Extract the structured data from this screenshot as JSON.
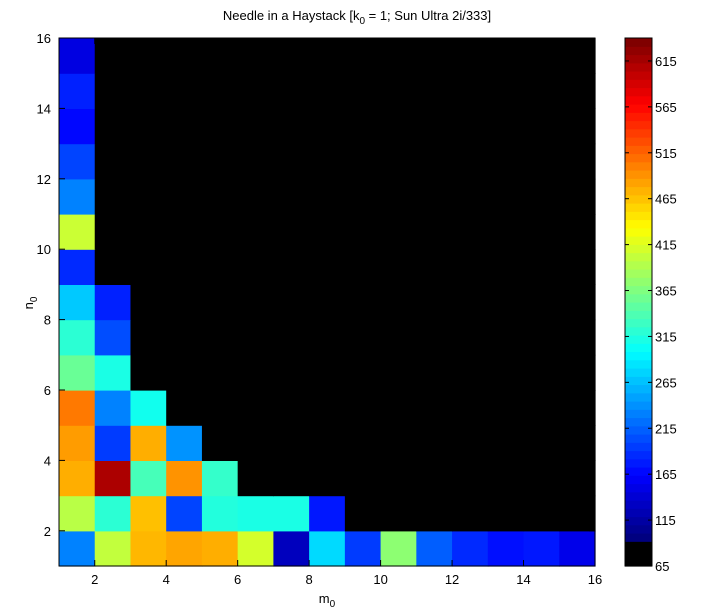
{
  "chart_data": {
    "type": "heatmap",
    "title": {
      "prefix": "Needle in a Haystack [k",
      "sub": "0",
      "suffix": " = 1; Sun Ultra 2i/333]"
    },
    "xlabel": {
      "base": "m",
      "sub": "0"
    },
    "ylabel": {
      "base": "n",
      "sub": "0"
    },
    "x_range": [
      1,
      16
    ],
    "y_range": [
      1,
      16
    ],
    "x_ticks": [
      "2",
      "4",
      "6",
      "8",
      "10",
      "12",
      "14",
      "16"
    ],
    "y_ticks": [
      "2",
      "4",
      "6",
      "8",
      "10",
      "12",
      "14",
      "16"
    ],
    "colorbar": {
      "min": 65,
      "max": 640,
      "ticks": [
        "65",
        "115",
        "165",
        "215",
        "265",
        "315",
        "365",
        "415",
        "465",
        "515",
        "565",
        "615"
      ],
      "colormap": "jet",
      "floor_color": "#000000"
    },
    "cells_description": "grid indexed [n0][m0], value 65 = black (no data)",
    "grid": [
      {
        "n": 1,
        "values": [
          210,
          390,
          465,
          475,
          470,
          400,
          100,
          260,
          170,
          360,
          190,
          160,
          145,
          150,
          125
        ]
      },
      {
        "n": 2,
        "values": [
          385,
          305,
          460,
          175,
          300,
          295,
          295,
          150,
          65,
          65,
          65,
          65,
          65,
          65,
          65
        ]
      },
      {
        "n": 3,
        "values": [
          470,
          615,
          320,
          485,
          310,
          65,
          65,
          65,
          65,
          65,
          65,
          65,
          65,
          65,
          65
        ]
      },
      {
        "n": 4,
        "values": [
          480,
          170,
          470,
          220,
          65,
          65,
          65,
          65,
          65,
          65,
          65,
          65,
          65,
          65,
          65
        ]
      },
      {
        "n": 5,
        "values": [
          500,
          210,
          290,
          65,
          65,
          65,
          65,
          65,
          65,
          65,
          65,
          65,
          65,
          65,
          65
        ]
      },
      {
        "n": 6,
        "values": [
          340,
          295,
          65,
          65,
          65,
          65,
          65,
          65,
          65,
          65,
          65,
          65,
          65,
          65,
          65
        ]
      },
      {
        "n": 7,
        "values": [
          305,
          180,
          65,
          65,
          65,
          65,
          65,
          65,
          65,
          65,
          65,
          65,
          65,
          65,
          65
        ]
      },
      {
        "n": 8,
        "values": [
          250,
          155,
          65,
          65,
          65,
          65,
          65,
          65,
          65,
          65,
          65,
          65,
          65,
          65,
          65
        ]
      },
      {
        "n": 9,
        "values": [
          160,
          65,
          65,
          65,
          65,
          65,
          65,
          65,
          65,
          65,
          65,
          65,
          65,
          65,
          65
        ]
      },
      {
        "n": 10,
        "values": [
          395,
          65,
          65,
          65,
          65,
          65,
          65,
          65,
          65,
          65,
          65,
          65,
          65,
          65,
          65
        ]
      },
      {
        "n": 11,
        "values": [
          210,
          65,
          65,
          65,
          65,
          65,
          65,
          65,
          65,
          65,
          65,
          65,
          65,
          65,
          65
        ]
      },
      {
        "n": 12,
        "values": [
          175,
          65,
          65,
          65,
          65,
          65,
          65,
          65,
          65,
          65,
          65,
          65,
          65,
          65,
          65
        ]
      },
      {
        "n": 13,
        "values": [
          140,
          65,
          65,
          65,
          65,
          65,
          65,
          65,
          65,
          65,
          65,
          65,
          65,
          65,
          65
        ]
      },
      {
        "n": 14,
        "values": [
          155,
          65,
          65,
          65,
          65,
          65,
          65,
          65,
          65,
          65,
          65,
          65,
          65,
          65,
          65
        ]
      },
      {
        "n": 15,
        "values": [
          120,
          65,
          65,
          65,
          65,
          65,
          65,
          65,
          65,
          65,
          65,
          65,
          65,
          65,
          65
        ]
      }
    ]
  }
}
